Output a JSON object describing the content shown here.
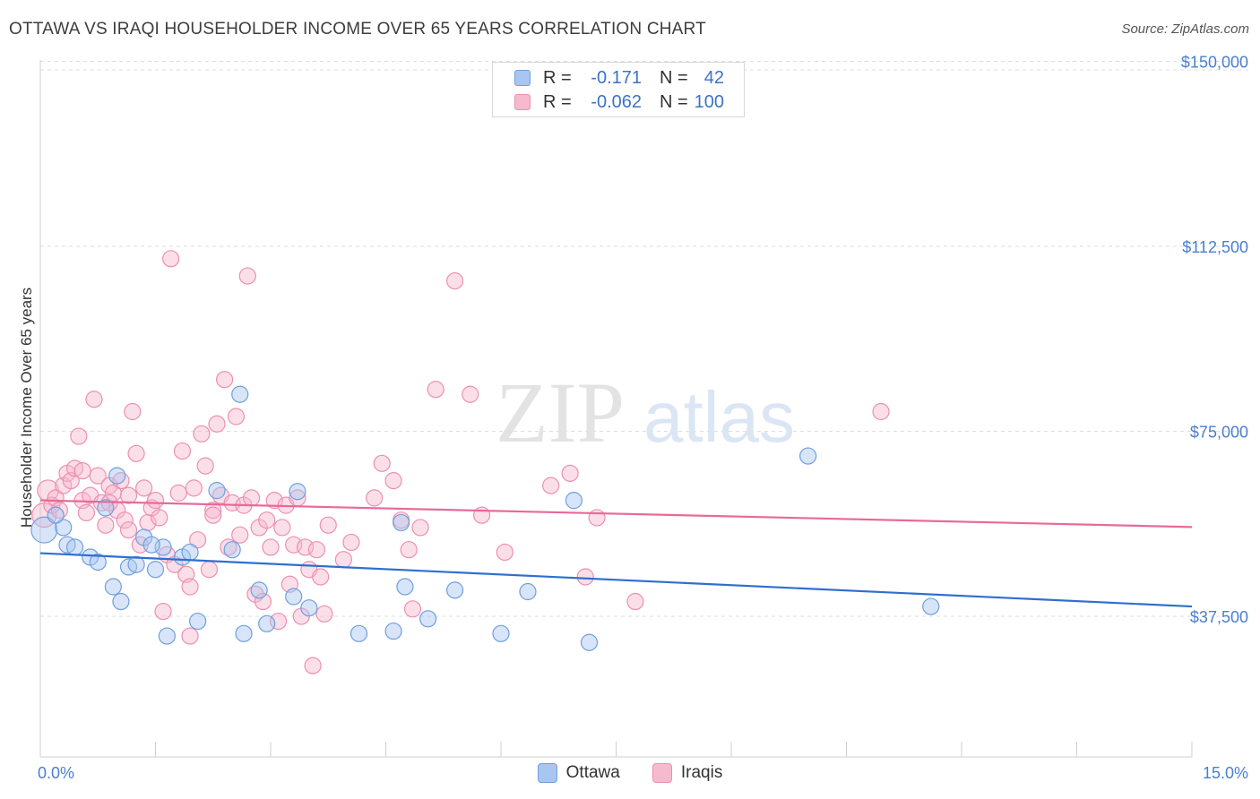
{
  "header": {
    "title": "OTTAWA VS IRAQI HOUSEHOLDER INCOME OVER 65 YEARS CORRELATION CHART",
    "source": "Source: ZipAtlas.com"
  },
  "watermark": {
    "zip": "ZIP",
    "atlas": "atlas"
  },
  "legend": {
    "rows": [
      {
        "r_label": "R =",
        "r_value": "-0.171",
        "n_label": "N =",
        "n_value": "42"
      },
      {
        "r_label": "R =",
        "r_value": "-0.062",
        "n_label": "N =",
        "n_value": "100"
      }
    ]
  },
  "bottom_legend": {
    "ottawa": "Ottawa",
    "iraqis": "Iraqis"
  },
  "colors": {
    "ottawa_fill": "#a9c6f0",
    "ottawa_stroke": "#6e9fe0",
    "ottawa_line": "#2f6fcf",
    "iraqis_fill": "#f6b9cd",
    "iraqis_stroke": "#ee8fb0",
    "iraqis_line": "#e8699a",
    "tick_text": "#4a7fd0",
    "grid": "#dedede"
  },
  "chart_data": {
    "type": "scatter",
    "title": "OTTAWA VS IRAQI HOUSEHOLDER INCOME OVER 65 YEARS CORRELATION CHART",
    "xlabel": "",
    "ylabel": "Householder Income Over 65 years",
    "xlim": [
      0,
      15
    ],
    "ylim": [
      9000,
      153000
    ],
    "x_tick_labels": {
      "min": "0.0%",
      "max": "15.0%"
    },
    "y_ticks": [
      {
        "value": 37500,
        "label": "$37,500"
      },
      {
        "value": 75000,
        "label": "$75,000"
      },
      {
        "value": 112500,
        "label": "$112,500"
      },
      {
        "value": 150000,
        "label": "$150,000"
      }
    ],
    "series": [
      {
        "name": "Ottawa",
        "r": -0.171,
        "n": 42,
        "trend": {
          "x0": 0,
          "y0": 50300,
          "x1": 15,
          "y1": 39500
        },
        "points": [
          [
            0.05,
            55000,
            1.6
          ],
          [
            0.3,
            55500,
            1
          ],
          [
            0.35,
            52000,
            1
          ],
          [
            0.45,
            51500,
            1
          ],
          [
            0.65,
            49500,
            1
          ],
          [
            0.75,
            48500,
            1
          ],
          [
            0.95,
            43500,
            1
          ],
          [
            1.05,
            40500,
            1
          ],
          [
            1.15,
            47500,
            1
          ],
          [
            1.25,
            48000,
            1
          ],
          [
            1.35,
            53500,
            1
          ],
          [
            1.5,
            47000,
            1
          ],
          [
            1.6,
            51500,
            1
          ],
          [
            1.65,
            33500,
            1
          ],
          [
            1.85,
            49500,
            1
          ],
          [
            1.95,
            50500,
            1
          ],
          [
            2.05,
            36500,
            1
          ],
          [
            2.3,
            63000,
            1
          ],
          [
            2.5,
            51000,
            1
          ],
          [
            2.6,
            82500,
            1
          ],
          [
            2.65,
            34000,
            1
          ],
          [
            2.85,
            42800,
            1
          ],
          [
            2.95,
            36000,
            1
          ],
          [
            3.3,
            41500,
            1
          ],
          [
            3.35,
            62800,
            1
          ],
          [
            3.5,
            39200,
            1
          ],
          [
            4.15,
            34000,
            1
          ],
          [
            4.6,
            34500,
            1
          ],
          [
            4.7,
            56500,
            1
          ],
          [
            4.75,
            43500,
            1
          ],
          [
            5.05,
            37000,
            1
          ],
          [
            5.4,
            42800,
            1
          ],
          [
            6.0,
            34000,
            1
          ],
          [
            6.35,
            42500,
            1
          ],
          [
            6.95,
            61000,
            1
          ],
          [
            7.15,
            32200,
            1
          ],
          [
            10.0,
            70000,
            1
          ],
          [
            11.6,
            39500,
            1
          ],
          [
            1.0,
            66000,
            1
          ],
          [
            0.85,
            59500,
            1
          ],
          [
            0.2,
            58000,
            1
          ],
          [
            1.45,
            52000,
            1
          ]
        ]
      },
      {
        "name": "Iraqis",
        "r": -0.062,
        "n": 100,
        "trend": {
          "x0": 0,
          "y0": 61000,
          "x1": 15,
          "y1": 55600
        },
        "points": [
          [
            0.05,
            58000,
            1.5
          ],
          [
            0.1,
            63000,
            1.3
          ],
          [
            0.15,
            60000,
            1
          ],
          [
            0.2,
            61500,
            1
          ],
          [
            0.25,
            59000,
            1
          ],
          [
            0.3,
            64000,
            1
          ],
          [
            0.35,
            66500,
            1
          ],
          [
            0.4,
            65000,
            1
          ],
          [
            0.45,
            67500,
            1
          ],
          [
            0.5,
            74000,
            1
          ],
          [
            0.55,
            61000,
            1
          ],
          [
            0.6,
            58500,
            1
          ],
          [
            0.65,
            62000,
            1
          ],
          [
            0.7,
            81500,
            1
          ],
          [
            0.75,
            66000,
            1
          ],
          [
            0.8,
            60500,
            1
          ],
          [
            0.85,
            56000,
            1
          ],
          [
            0.9,
            64000,
            1
          ],
          [
            0.95,
            62500,
            1
          ],
          [
            1.0,
            59000,
            1
          ],
          [
            1.05,
            65000,
            1
          ],
          [
            1.1,
            57000,
            1
          ],
          [
            1.15,
            62000,
            1
          ],
          [
            1.2,
            79000,
            1
          ],
          [
            1.25,
            70500,
            1
          ],
          [
            1.3,
            52000,
            1
          ],
          [
            1.35,
            63500,
            1
          ],
          [
            1.4,
            56500,
            1
          ],
          [
            1.45,
            59500,
            1
          ],
          [
            1.5,
            61000,
            1
          ],
          [
            1.55,
            57500,
            1
          ],
          [
            1.6,
            38500,
            1
          ],
          [
            1.65,
            50000,
            1
          ],
          [
            1.7,
            110000,
            1
          ],
          [
            1.75,
            48000,
            1
          ],
          [
            1.8,
            62500,
            1
          ],
          [
            1.85,
            71000,
            1
          ],
          [
            1.9,
            46000,
            1
          ],
          [
            1.95,
            33500,
            1
          ],
          [
            2.0,
            63500,
            1
          ],
          [
            2.05,
            53000,
            1
          ],
          [
            2.1,
            74500,
            1
          ],
          [
            2.15,
            68000,
            1
          ],
          [
            2.2,
            47000,
            1
          ],
          [
            2.25,
            59000,
            1
          ],
          [
            2.3,
            76500,
            1
          ],
          [
            2.35,
            62000,
            1
          ],
          [
            2.4,
            85500,
            1
          ],
          [
            2.45,
            51500,
            1
          ],
          [
            2.5,
            60500,
            1
          ],
          [
            2.55,
            78000,
            1
          ],
          [
            2.6,
            54000,
            1
          ],
          [
            2.65,
            60000,
            1
          ],
          [
            2.7,
            106500,
            1
          ],
          [
            2.75,
            61500,
            1
          ],
          [
            2.8,
            42000,
            1
          ],
          [
            2.85,
            55500,
            1
          ],
          [
            2.9,
            40500,
            1
          ],
          [
            2.95,
            57000,
            1
          ],
          [
            3.0,
            51500,
            1
          ],
          [
            3.05,
            61000,
            1
          ],
          [
            3.1,
            36500,
            1
          ],
          [
            3.15,
            55500,
            1
          ],
          [
            3.2,
            60000,
            1
          ],
          [
            3.25,
            44000,
            1
          ],
          [
            3.3,
            52000,
            1
          ],
          [
            3.35,
            61500,
            1
          ],
          [
            3.4,
            37500,
            1
          ],
          [
            3.45,
            51500,
            1
          ],
          [
            3.5,
            47000,
            1
          ],
          [
            3.55,
            27500,
            1
          ],
          [
            3.6,
            51000,
            1
          ],
          [
            3.65,
            45500,
            1
          ],
          [
            3.7,
            38000,
            1
          ],
          [
            3.75,
            56000,
            1
          ],
          [
            4.05,
            52500,
            1
          ],
          [
            4.35,
            61500,
            1
          ],
          [
            4.45,
            68500,
            1
          ],
          [
            4.6,
            65000,
            1
          ],
          [
            4.7,
            57000,
            1
          ],
          [
            4.8,
            51000,
            1
          ],
          [
            4.95,
            55500,
            1
          ],
          [
            5.15,
            83500,
            1
          ],
          [
            5.4,
            105500,
            1
          ],
          [
            5.6,
            82500,
            1
          ],
          [
            5.75,
            58000,
            1
          ],
          [
            6.05,
            50500,
            1
          ],
          [
            6.65,
            64000,
            1
          ],
          [
            6.9,
            66500,
            1
          ],
          [
            7.1,
            45500,
            1
          ],
          [
            7.25,
            57500,
            1
          ],
          [
            7.75,
            40500,
            1
          ],
          [
            10.95,
            79000,
            1
          ],
          [
            4.85,
            39000,
            1
          ],
          [
            1.15,
            55000,
            1
          ],
          [
            0.55,
            67000,
            1
          ],
          [
            2.25,
            58000,
            1
          ],
          [
            3.95,
            49000,
            1
          ],
          [
            1.95,
            43500,
            1
          ],
          [
            0.9,
            60500,
            1
          ]
        ]
      }
    ]
  }
}
